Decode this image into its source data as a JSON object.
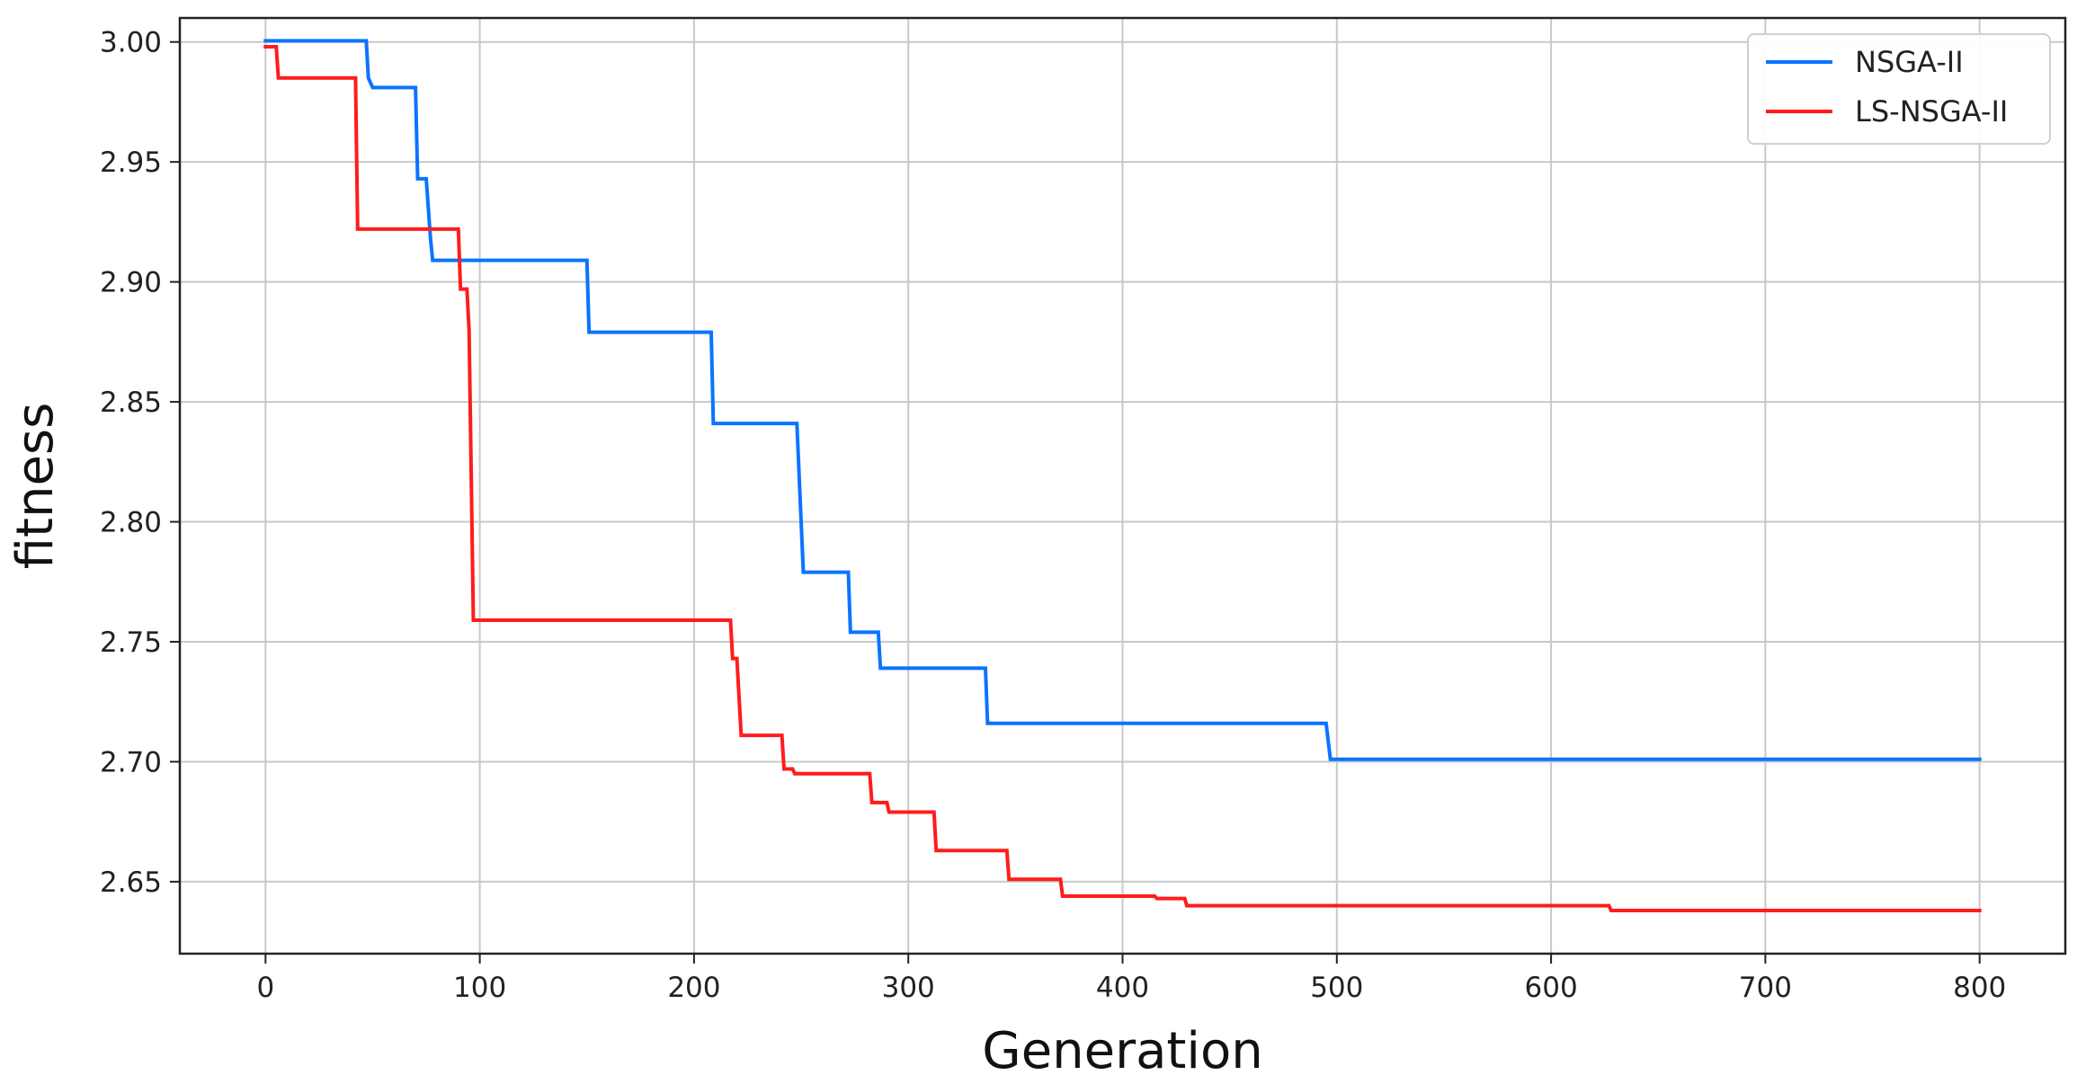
{
  "chart_data": {
    "type": "line",
    "title": "",
    "xlabel": "Generation",
    "ylabel": "fitness",
    "xlim": [
      -40,
      840
    ],
    "ylim": [
      2.62,
      3.01
    ],
    "x_ticks": [
      0,
      100,
      200,
      300,
      400,
      500,
      600,
      700,
      800
    ],
    "y_ticks": [
      2.65,
      2.7,
      2.75,
      2.8,
      2.85,
      2.9,
      2.95,
      3.0
    ],
    "x_tick_labels": [
      "0",
      "100",
      "200",
      "300",
      "400",
      "500",
      "600",
      "700",
      "800"
    ],
    "y_tick_labels": [
      "2.65",
      "2.70",
      "2.75",
      "2.80",
      "2.85",
      "2.90",
      "2.95",
      "3.00"
    ],
    "grid": true,
    "legend": {
      "position": "top-right"
    },
    "series": [
      {
        "name": "NSGA-II",
        "color": "#0a74ff",
        "line": "step",
        "points": [
          [
            0,
            3.0005
          ],
          [
            47,
            3.0005
          ],
          [
            48,
            2.985
          ],
          [
            50,
            2.981
          ],
          [
            70,
            2.981
          ],
          [
            71,
            2.943
          ],
          [
            75,
            2.943
          ],
          [
            77,
            2.918
          ],
          [
            78,
            2.909
          ],
          [
            150,
            2.909
          ],
          [
            151,
            2.879
          ],
          [
            208,
            2.879
          ],
          [
            209,
            2.841
          ],
          [
            248,
            2.841
          ],
          [
            251,
            2.779
          ],
          [
            272,
            2.779
          ],
          [
            273,
            2.754
          ],
          [
            286,
            2.754
          ],
          [
            287,
            2.739
          ],
          [
            336,
            2.739
          ],
          [
            337,
            2.716
          ],
          [
            495,
            2.716
          ],
          [
            497,
            2.701
          ],
          [
            800,
            2.701
          ]
        ]
      },
      {
        "name": "LS-NSGA-II",
        "color": "#ff1c1c",
        "line": "step",
        "points": [
          [
            0,
            2.998
          ],
          [
            5,
            2.998
          ],
          [
            6,
            2.985
          ],
          [
            42,
            2.985
          ],
          [
            43,
            2.922
          ],
          [
            90,
            2.922
          ],
          [
            91,
            2.897
          ],
          [
            94,
            2.897
          ],
          [
            95,
            2.88
          ],
          [
            97,
            2.759
          ],
          [
            217,
            2.759
          ],
          [
            218,
            2.743
          ],
          [
            220,
            2.743
          ],
          [
            222,
            2.711
          ],
          [
            241,
            2.711
          ],
          [
            242,
            2.697
          ],
          [
            246,
            2.697
          ],
          [
            247,
            2.695
          ],
          [
            282,
            2.695
          ],
          [
            283,
            2.683
          ],
          [
            290,
            2.683
          ],
          [
            291,
            2.679
          ],
          [
            312,
            2.679
          ],
          [
            313,
            2.663
          ],
          [
            346,
            2.663
          ],
          [
            347,
            2.651
          ],
          [
            371,
            2.651
          ],
          [
            372,
            2.644
          ],
          [
            415,
            2.644
          ],
          [
            416,
            2.643
          ],
          [
            429,
            2.643
          ],
          [
            430,
            2.64
          ],
          [
            627,
            2.64
          ],
          [
            628,
            2.638
          ],
          [
            800,
            2.638
          ]
        ]
      }
    ]
  }
}
